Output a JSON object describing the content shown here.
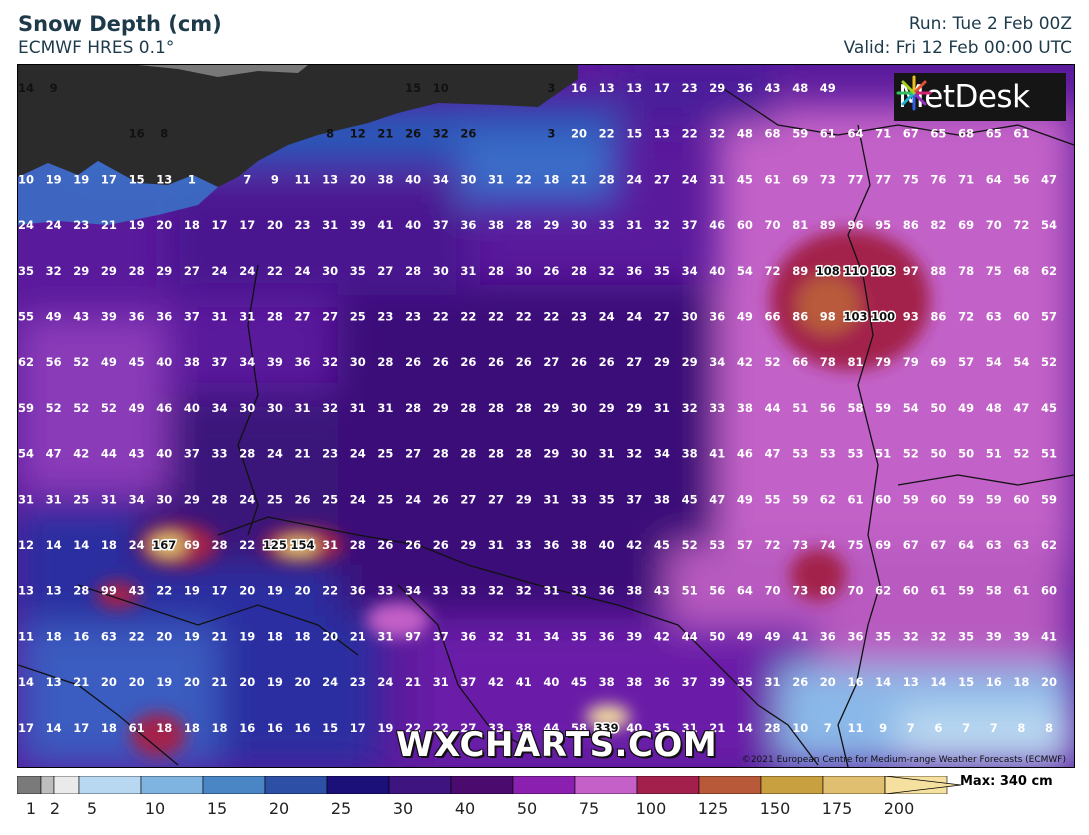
{
  "header": {
    "title": "Snow Depth (cm)",
    "subtitle": "ECMWF HRES 0.1°",
    "run": "Run: Tue 2 Feb 00Z",
    "valid": "Valid: Fri 12 Feb 00:00 UTC"
  },
  "logo": {
    "text": "MetDesk"
  },
  "watermark": "WXCHARTS.COM",
  "copyright": "©2021 European Centre for Medium-range Weather Forecasts (ECMWF)",
  "legend": {
    "max_label": "Max: 340 cm",
    "ticks": [
      "1",
      "2",
      "5",
      "10",
      "15",
      "20",
      "25",
      "30",
      "40",
      "50",
      "75",
      "100",
      "125",
      "150",
      "175",
      "200"
    ],
    "colors": [
      "#7a7a7a",
      "#bdbdbd",
      "#eaeaea",
      "#b8d7f0",
      "#7fb3e0",
      "#4a86c6",
      "#2d4fa6",
      "#1b0f7a",
      "#3d1480",
      "#4a0a6e",
      "#8a1fb0",
      "#c460c8",
      "#a3204c",
      "#b85a3a",
      "#c8a040",
      "#e0c070",
      "#f5e0a0"
    ],
    "units_note": "cm"
  },
  "map": {
    "grid": [
      [
        "14",
        "9",
        "",
        "",
        "",
        "",
        "",
        "",
        "",
        "",
        "",
        "",
        "",
        "",
        "15",
        "10",
        "",
        "",
        "",
        "3",
        "16",
        "13",
        "13",
        "17",
        "23",
        "29",
        "36",
        "43",
        "48",
        "49",
        "",
        "",
        "",
        "",
        "",
        ""
      ],
      [
        "",
        "",
        "",
        "",
        "16",
        "8",
        "",
        "",
        "",
        "",
        "",
        "8",
        "12",
        "21",
        "26",
        "32",
        "26",
        "",
        "",
        "3",
        "20",
        "22",
        "15",
        "13",
        "22",
        "32",
        "48",
        "68",
        "59",
        "61",
        "64",
        "71",
        "67",
        "65",
        "68",
        "65",
        "61"
      ],
      [
        "10",
        "19",
        "19",
        "17",
        "15",
        "13",
        "1",
        "",
        "7",
        "9",
        "11",
        "13",
        "20",
        "38",
        "40",
        "34",
        "30",
        "31",
        "22",
        "18",
        "21",
        "28",
        "24",
        "27",
        "24",
        "31",
        "45",
        "61",
        "69",
        "73",
        "77",
        "77",
        "75",
        "76",
        "71",
        "64",
        "56",
        "47"
      ],
      [
        "24",
        "24",
        "23",
        "21",
        "19",
        "20",
        "18",
        "17",
        "17",
        "20",
        "23",
        "31",
        "39",
        "41",
        "40",
        "37",
        "36",
        "38",
        "28",
        "29",
        "30",
        "33",
        "31",
        "32",
        "37",
        "46",
        "60",
        "70",
        "81",
        "89",
        "96",
        "95",
        "86",
        "82",
        "69",
        "70",
        "72",
        "54"
      ],
      [
        "35",
        "32",
        "29",
        "29",
        "28",
        "29",
        "27",
        "24",
        "24",
        "22",
        "24",
        "30",
        "35",
        "27",
        "28",
        "30",
        "31",
        "28",
        "30",
        "26",
        "28",
        "32",
        "36",
        "35",
        "34",
        "40",
        "54",
        "72",
        "89",
        "108",
        "110",
        "103",
        "97",
        "88",
        "78",
        "75",
        "68",
        "62"
      ],
      [
        "55",
        "49",
        "43",
        "39",
        "36",
        "36",
        "37",
        "31",
        "31",
        "28",
        "27",
        "27",
        "25",
        "23",
        "23",
        "22",
        "22",
        "22",
        "22",
        "22",
        "23",
        "24",
        "24",
        "27",
        "30",
        "36",
        "49",
        "66",
        "86",
        "98",
        "103",
        "100",
        "93",
        "86",
        "72",
        "63",
        "60",
        "57"
      ],
      [
        "62",
        "56",
        "52",
        "49",
        "45",
        "40",
        "38",
        "37",
        "34",
        "39",
        "36",
        "32",
        "30",
        "28",
        "26",
        "26",
        "26",
        "26",
        "26",
        "27",
        "26",
        "26",
        "27",
        "29",
        "29",
        "34",
        "42",
        "52",
        "66",
        "78",
        "81",
        "79",
        "79",
        "69",
        "57",
        "54",
        "54",
        "52"
      ],
      [
        "59",
        "52",
        "52",
        "52",
        "49",
        "46",
        "40",
        "34",
        "30",
        "30",
        "31",
        "32",
        "31",
        "31",
        "28",
        "29",
        "28",
        "28",
        "28",
        "29",
        "30",
        "29",
        "29",
        "31",
        "32",
        "33",
        "38",
        "44",
        "51",
        "56",
        "58",
        "59",
        "54",
        "50",
        "49",
        "48",
        "47",
        "45"
      ],
      [
        "54",
        "47",
        "42",
        "44",
        "43",
        "40",
        "37",
        "33",
        "28",
        "24",
        "21",
        "23",
        "24",
        "25",
        "27",
        "28",
        "28",
        "28",
        "28",
        "29",
        "30",
        "31",
        "32",
        "34",
        "38",
        "41",
        "46",
        "47",
        "53",
        "53",
        "53",
        "51",
        "52",
        "50",
        "50",
        "51",
        "52",
        "51"
      ],
      [
        "31",
        "31",
        "25",
        "31",
        "34",
        "30",
        "29",
        "28",
        "24",
        "25",
        "26",
        "25",
        "24",
        "25",
        "24",
        "26",
        "27",
        "27",
        "29",
        "31",
        "33",
        "35",
        "37",
        "38",
        "45",
        "47",
        "49",
        "55",
        "59",
        "62",
        "61",
        "60",
        "59",
        "60",
        "59",
        "59",
        "60",
        "59"
      ],
      [
        "12",
        "14",
        "14",
        "18",
        "24",
        "167",
        "69",
        "28",
        "22",
        "125",
        "154",
        "31",
        "28",
        "26",
        "26",
        "26",
        "29",
        "31",
        "33",
        "36",
        "38",
        "40",
        "42",
        "45",
        "52",
        "53",
        "57",
        "72",
        "73",
        "74",
        "75",
        "69",
        "67",
        "67",
        "64",
        "63",
        "63",
        "62"
      ],
      [
        "13",
        "13",
        "28",
        "99",
        "43",
        "22",
        "19",
        "17",
        "20",
        "19",
        "20",
        "22",
        "36",
        "33",
        "34",
        "33",
        "33",
        "32",
        "32",
        "31",
        "33",
        "36",
        "38",
        "43",
        "51",
        "56",
        "64",
        "70",
        "73",
        "80",
        "70",
        "62",
        "60",
        "61",
        "59",
        "58",
        "61",
        "60"
      ],
      [
        "11",
        "18",
        "16",
        "63",
        "22",
        "20",
        "19",
        "21",
        "19",
        "18",
        "18",
        "20",
        "21",
        "31",
        "97",
        "37",
        "36",
        "32",
        "31",
        "34",
        "35",
        "36",
        "39",
        "42",
        "44",
        "50",
        "49",
        "49",
        "41",
        "36",
        "36",
        "35",
        "32",
        "32",
        "35",
        "39",
        "39",
        "41"
      ],
      [
        "14",
        "13",
        "21",
        "20",
        "20",
        "19",
        "20",
        "21",
        "20",
        "19",
        "20",
        "24",
        "23",
        "24",
        "21",
        "31",
        "37",
        "42",
        "41",
        "40",
        "45",
        "38",
        "38",
        "36",
        "37",
        "39",
        "35",
        "31",
        "26",
        "20",
        "16",
        "14",
        "13",
        "14",
        "15",
        "16",
        "18",
        "20"
      ],
      [
        "17",
        "14",
        "17",
        "18",
        "61",
        "18",
        "18",
        "18",
        "16",
        "16",
        "16",
        "15",
        "17",
        "19",
        "22",
        "22",
        "27",
        "33",
        "38",
        "44",
        "58",
        "339",
        "40",
        "35",
        "31",
        "21",
        "14",
        "28",
        "10",
        "7",
        "11",
        "9",
        "7",
        "6",
        "7",
        "7",
        "8",
        "8"
      ]
    ]
  }
}
